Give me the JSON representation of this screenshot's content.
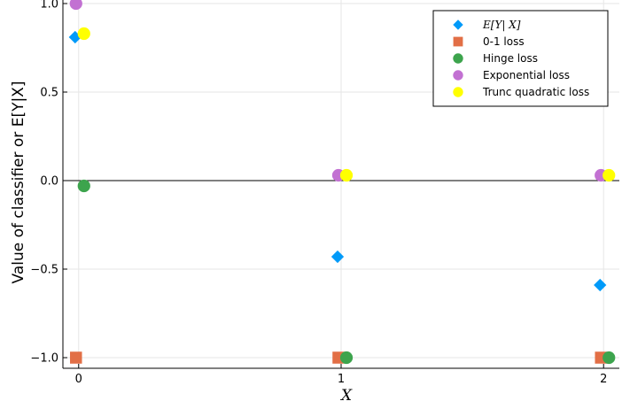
{
  "chart_data": {
    "type": "scatter",
    "xlabel": "X",
    "ylabel": "Value of classifier or E[Y|X]",
    "xlim": [
      -0.06,
      2.06
    ],
    "ylim": [
      -1.06,
      1.02
    ],
    "xticks": [
      {
        "value": 0,
        "label": "0"
      },
      {
        "value": 1,
        "label": "1"
      },
      {
        "value": 2,
        "label": "2"
      }
    ],
    "yticks": [
      {
        "value": 1.0,
        "label": "1.0"
      },
      {
        "value": 0.5,
        "label": "0.5"
      },
      {
        "value": 0.0,
        "label": "0.0"
      },
      {
        "value": -0.5,
        "label": "−0.5"
      },
      {
        "value": -1.0,
        "label": "−1.0"
      }
    ],
    "grid": true,
    "zero_line": true,
    "legend_position": "top-right",
    "series": [
      {
        "name": "E[Y| X]",
        "marker": "diamond",
        "color": "#009AF9",
        "points": [
          {
            "x": 0,
            "y": 0.81
          },
          {
            "x": 1,
            "y": -0.43
          },
          {
            "x": 2,
            "y": -0.59
          }
        ]
      },
      {
        "name": "0-1 loss",
        "marker": "square",
        "color": "#E26F46",
        "points": [
          {
            "x": 0,
            "y": -1.0
          },
          {
            "x": 1,
            "y": -1.0
          },
          {
            "x": 2,
            "y": -1.0
          }
        ]
      },
      {
        "name": "Hinge loss",
        "marker": "circle",
        "color": "#3DA44D",
        "points": [
          {
            "x": 0,
            "y": -0.03
          },
          {
            "x": 1,
            "y": -1.0
          },
          {
            "x": 2,
            "y": -1.0
          }
        ]
      },
      {
        "name": "Exponential loss",
        "marker": "circle",
        "color": "#C271D2",
        "points": [
          {
            "x": 0,
            "y": 1.0
          },
          {
            "x": 1,
            "y": 0.03
          },
          {
            "x": 2,
            "y": 0.03
          }
        ]
      },
      {
        "name": "Trunc quadratic loss",
        "marker": "circle",
        "color": "#FFFF00",
        "points": [
          {
            "x": 0,
            "y": 0.83
          },
          {
            "x": 1,
            "y": 0.03
          },
          {
            "x": 2,
            "y": 0.03
          }
        ]
      }
    ]
  }
}
